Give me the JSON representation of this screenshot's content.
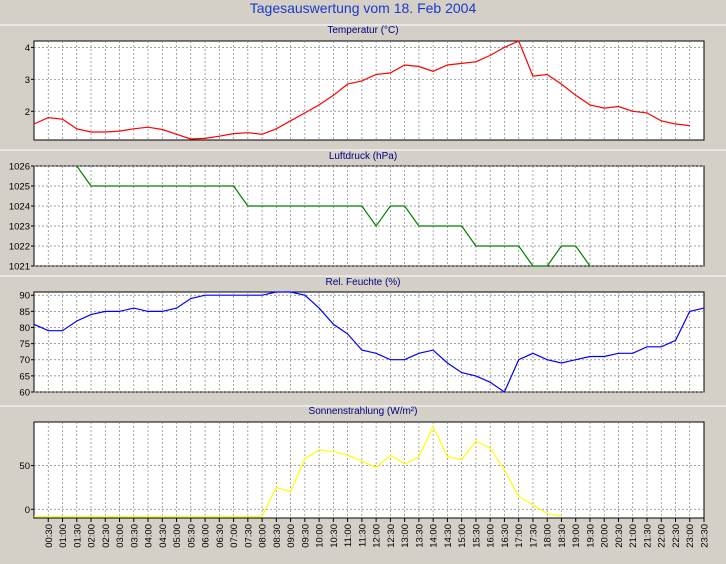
{
  "title": "Tagesauswertung vom 18. Feb 2004",
  "colors": {
    "background": "#d4d0c8",
    "plot_background": "#ffffff",
    "title": "#1c39c8",
    "grid": "#808080",
    "temperature": "#ff0000",
    "pressure": "#008000",
    "humidity": "#0000ff",
    "radiation": "#ffff00"
  },
  "time_labels": [
    "00:30",
    "01:00",
    "01:30",
    "02:00",
    "02:30",
    "03:00",
    "03:30",
    "04:00",
    "04:30",
    "05:00",
    "05:30",
    "06:00",
    "06:30",
    "07:00",
    "07:30",
    "08:00",
    "08:30",
    "09:00",
    "09:30",
    "10:00",
    "10:30",
    "11:00",
    "11:30",
    "12:00",
    "12:30",
    "13:00",
    "13:30",
    "14:00",
    "14:30",
    "15:00",
    "15:30",
    "16:00",
    "16:30",
    "17:00",
    "17:30",
    "18:00",
    "18:30",
    "19:00",
    "19:30",
    "20:00",
    "20:30",
    "21:00",
    "21:30",
    "22:00",
    "22:30",
    "23:00",
    "23:30"
  ],
  "chart_data": [
    {
      "type": "line",
      "title": "Temperatur (°C)",
      "x_axis": "time",
      "xlim": [
        "00:00",
        "23:30"
      ],
      "ylim": [
        1.1,
        4.2
      ],
      "yticks": [
        2,
        3,
        4
      ],
      "grid": true,
      "series": [
        {
          "color": "#ff0000",
          "x": [
            "00:00",
            "00:30",
            "01:00",
            "01:30",
            "02:00",
            "02:30",
            "03:00",
            "03:30",
            "04:00",
            "04:30",
            "05:00",
            "05:30",
            "06:00",
            "06:30",
            "07:00",
            "07:30",
            "08:00",
            "08:30",
            "09:00",
            "09:30",
            "10:00",
            "10:30",
            "11:00",
            "11:30",
            "12:00",
            "12:30",
            "13:00",
            "13:30",
            "14:00",
            "14:30",
            "15:00",
            "15:30",
            "16:00",
            "16:30",
            "17:00",
            "17:30",
            "18:00",
            "18:30",
            "19:00",
            "19:30",
            "20:00",
            "20:30",
            "21:00",
            "21:30",
            "22:00",
            "22:30",
            "23:00"
          ],
          "y": [
            1.6,
            1.8,
            1.75,
            1.45,
            1.35,
            1.35,
            1.38,
            1.45,
            1.5,
            1.43,
            1.28,
            1.13,
            1.15,
            1.22,
            1.3,
            1.33,
            1.28,
            1.45,
            1.7,
            1.95,
            2.2,
            2.5,
            2.85,
            2.95,
            3.15,
            3.2,
            3.45,
            3.4,
            3.25,
            3.45,
            3.5,
            3.55,
            3.75,
            4.0,
            4.2,
            3.1,
            3.15,
            2.85,
            2.5,
            2.2,
            2.1,
            2.15,
            2.0,
            1.95,
            1.7,
            1.6,
            1.55
          ]
        }
      ]
    },
    {
      "type": "line",
      "title": "Luftdruck (hPa)",
      "x_axis": "time",
      "xlim": [
        "00:00",
        "23:30"
      ],
      "ylim": [
        1021,
        1026
      ],
      "yticks": [
        1021,
        1022,
        1023,
        1024,
        1025,
        1026
      ],
      "grid": true,
      "series": [
        {
          "color": "#008000",
          "x": [
            "01:30",
            "02:00",
            "07:00",
            "07:30",
            "11:30",
            "12:00",
            "12:30",
            "13:00",
            "13:30",
            "15:00",
            "15:30",
            "17:00",
            "17:30",
            "18:00",
            "18:30",
            "19:00",
            "19:30"
          ],
          "y": [
            1026,
            1025,
            1025,
            1024,
            1024,
            1023,
            1024,
            1024,
            1023,
            1023,
            1022,
            1022,
            1021,
            1021,
            1022,
            1022,
            1021
          ]
        }
      ]
    },
    {
      "type": "line",
      "title": "Rel. Feuchte (%)",
      "x_axis": "time",
      "xlim": [
        "00:00",
        "23:30"
      ],
      "ylim": [
        60,
        91
      ],
      "yticks": [
        60,
        65,
        70,
        75,
        80,
        85,
        90
      ],
      "grid": true,
      "series": [
        {
          "color": "#0000ff",
          "x": [
            "00:00",
            "00:30",
            "01:00",
            "01:30",
            "02:00",
            "02:30",
            "03:00",
            "03:30",
            "04:00",
            "04:30",
            "05:00",
            "05:30",
            "06:00",
            "06:30",
            "07:00",
            "07:30",
            "08:00",
            "08:30",
            "09:00",
            "09:30",
            "10:00",
            "10:30",
            "11:00",
            "11:30",
            "12:00",
            "12:30",
            "13:00",
            "13:30",
            "14:00",
            "14:30",
            "15:00",
            "15:30",
            "16:00",
            "16:30",
            "17:00",
            "17:30",
            "18:00",
            "18:30",
            "19:00",
            "19:30",
            "20:00",
            "20:30",
            "21:00",
            "21:30",
            "22:00",
            "22:30",
            "23:00",
            "23:30"
          ],
          "y": [
            81,
            79,
            79,
            82,
            84,
            85,
            85,
            86,
            85,
            85,
            86,
            89,
            90,
            90,
            90,
            90,
            90,
            91,
            91,
            90,
            86,
            81,
            78,
            73,
            72,
            70,
            70,
            72,
            73,
            69,
            66,
            65,
            63,
            60,
            70,
            72,
            70,
            69,
            70,
            71,
            71,
            72,
            72,
            74,
            74,
            76,
            85,
            86
          ]
        }
      ]
    },
    {
      "type": "line",
      "title": "Sonnenstrahlung (W/m²)",
      "x_axis": "time",
      "xlim": [
        "00:00",
        "23:30"
      ],
      "ylim": [
        -10,
        100
      ],
      "yticks": [
        0,
        50
      ],
      "grid": true,
      "series": [
        {
          "color": "#ffff00",
          "x": [
            "00:00",
            "08:00",
            "08:30",
            "09:00",
            "09:30",
            "10:00",
            "10:30",
            "11:00",
            "11:30",
            "12:00",
            "12:30",
            "13:00",
            "13:30",
            "14:00",
            "14:30",
            "15:00",
            "15:30",
            "16:00",
            "16:30",
            "17:00",
            "17:30",
            "18:00",
            "18:30"
          ],
          "y": [
            -8,
            -8,
            25,
            20,
            58,
            68,
            66,
            62,
            55,
            48,
            62,
            52,
            60,
            95,
            60,
            57,
            78,
            70,
            45,
            15,
            5,
            -5,
            -8
          ]
        }
      ]
    }
  ]
}
